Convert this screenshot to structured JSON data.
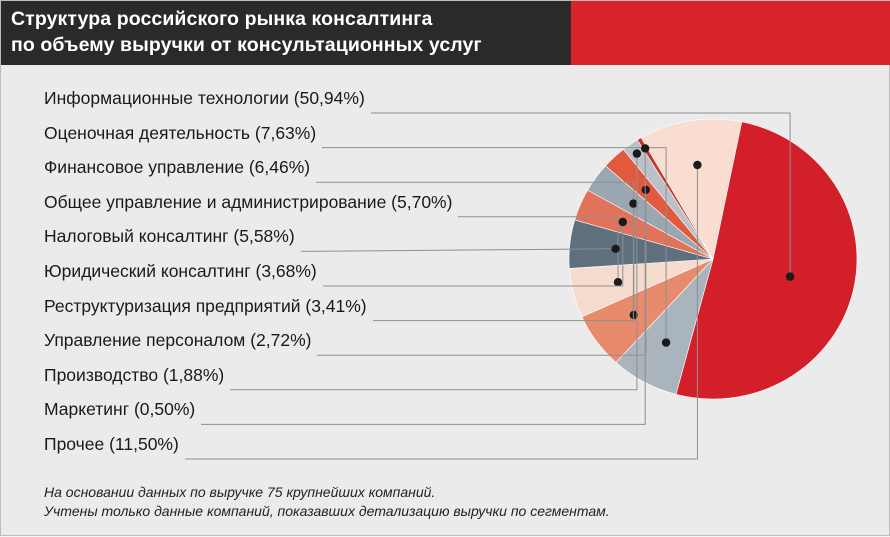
{
  "header": {
    "title_line1": "Структура российского рынка консалтинга",
    "title_line2": "по объему выручки от консультационных услуг"
  },
  "chart_data": {
    "type": "pie",
    "title": "Структура российского рынка консалтинга по объему выручки от консультационных услуг",
    "slices": [
      {
        "label": "Информационные технологии (50,94%)",
        "value": 50.94,
        "color": "#d21f2a"
      },
      {
        "label": "Оценочная деятельность (7,63%)",
        "value": 7.63,
        "color": "#a9b4bd"
      },
      {
        "label": "Финансовое управление (6,46%)",
        "value": 6.46,
        "color": "#e88a6c"
      },
      {
        "label": "Общее управление и администрирование (5,70%)",
        "value": 5.7,
        "color": "#f6dccf"
      },
      {
        "label": "Налоговый консалтинг (5,58%)",
        "value": 5.58,
        "color": "#5e6f7d"
      },
      {
        "label": "Юридический консалтинг (3,68%)",
        "value": 3.68,
        "color": "#e2735a"
      },
      {
        "label": "Реструктуризация предприятий (3,41%)",
        "value": 3.41,
        "color": "#9aa7b1"
      },
      {
        "label": "Управление персоналом (2,72%)",
        "value": 2.72,
        "color": "#e25a3e"
      },
      {
        "label": "Производство (1,88%)",
        "value": 1.88,
        "color": "#b9c2c9"
      },
      {
        "label": "Маркетинг (0,50%)",
        "value": 0.5,
        "color": "#c0392b"
      },
      {
        "label": "Прочее (11,50%)",
        "value": 11.5,
        "color": "#f8ddd0"
      }
    ]
  },
  "footnote": {
    "line1": "На основании данных по выручке 75 крупнейших компаний.",
    "line2": "Учтены только данные компаний, показавших детализацию выручки по сегментам."
  }
}
